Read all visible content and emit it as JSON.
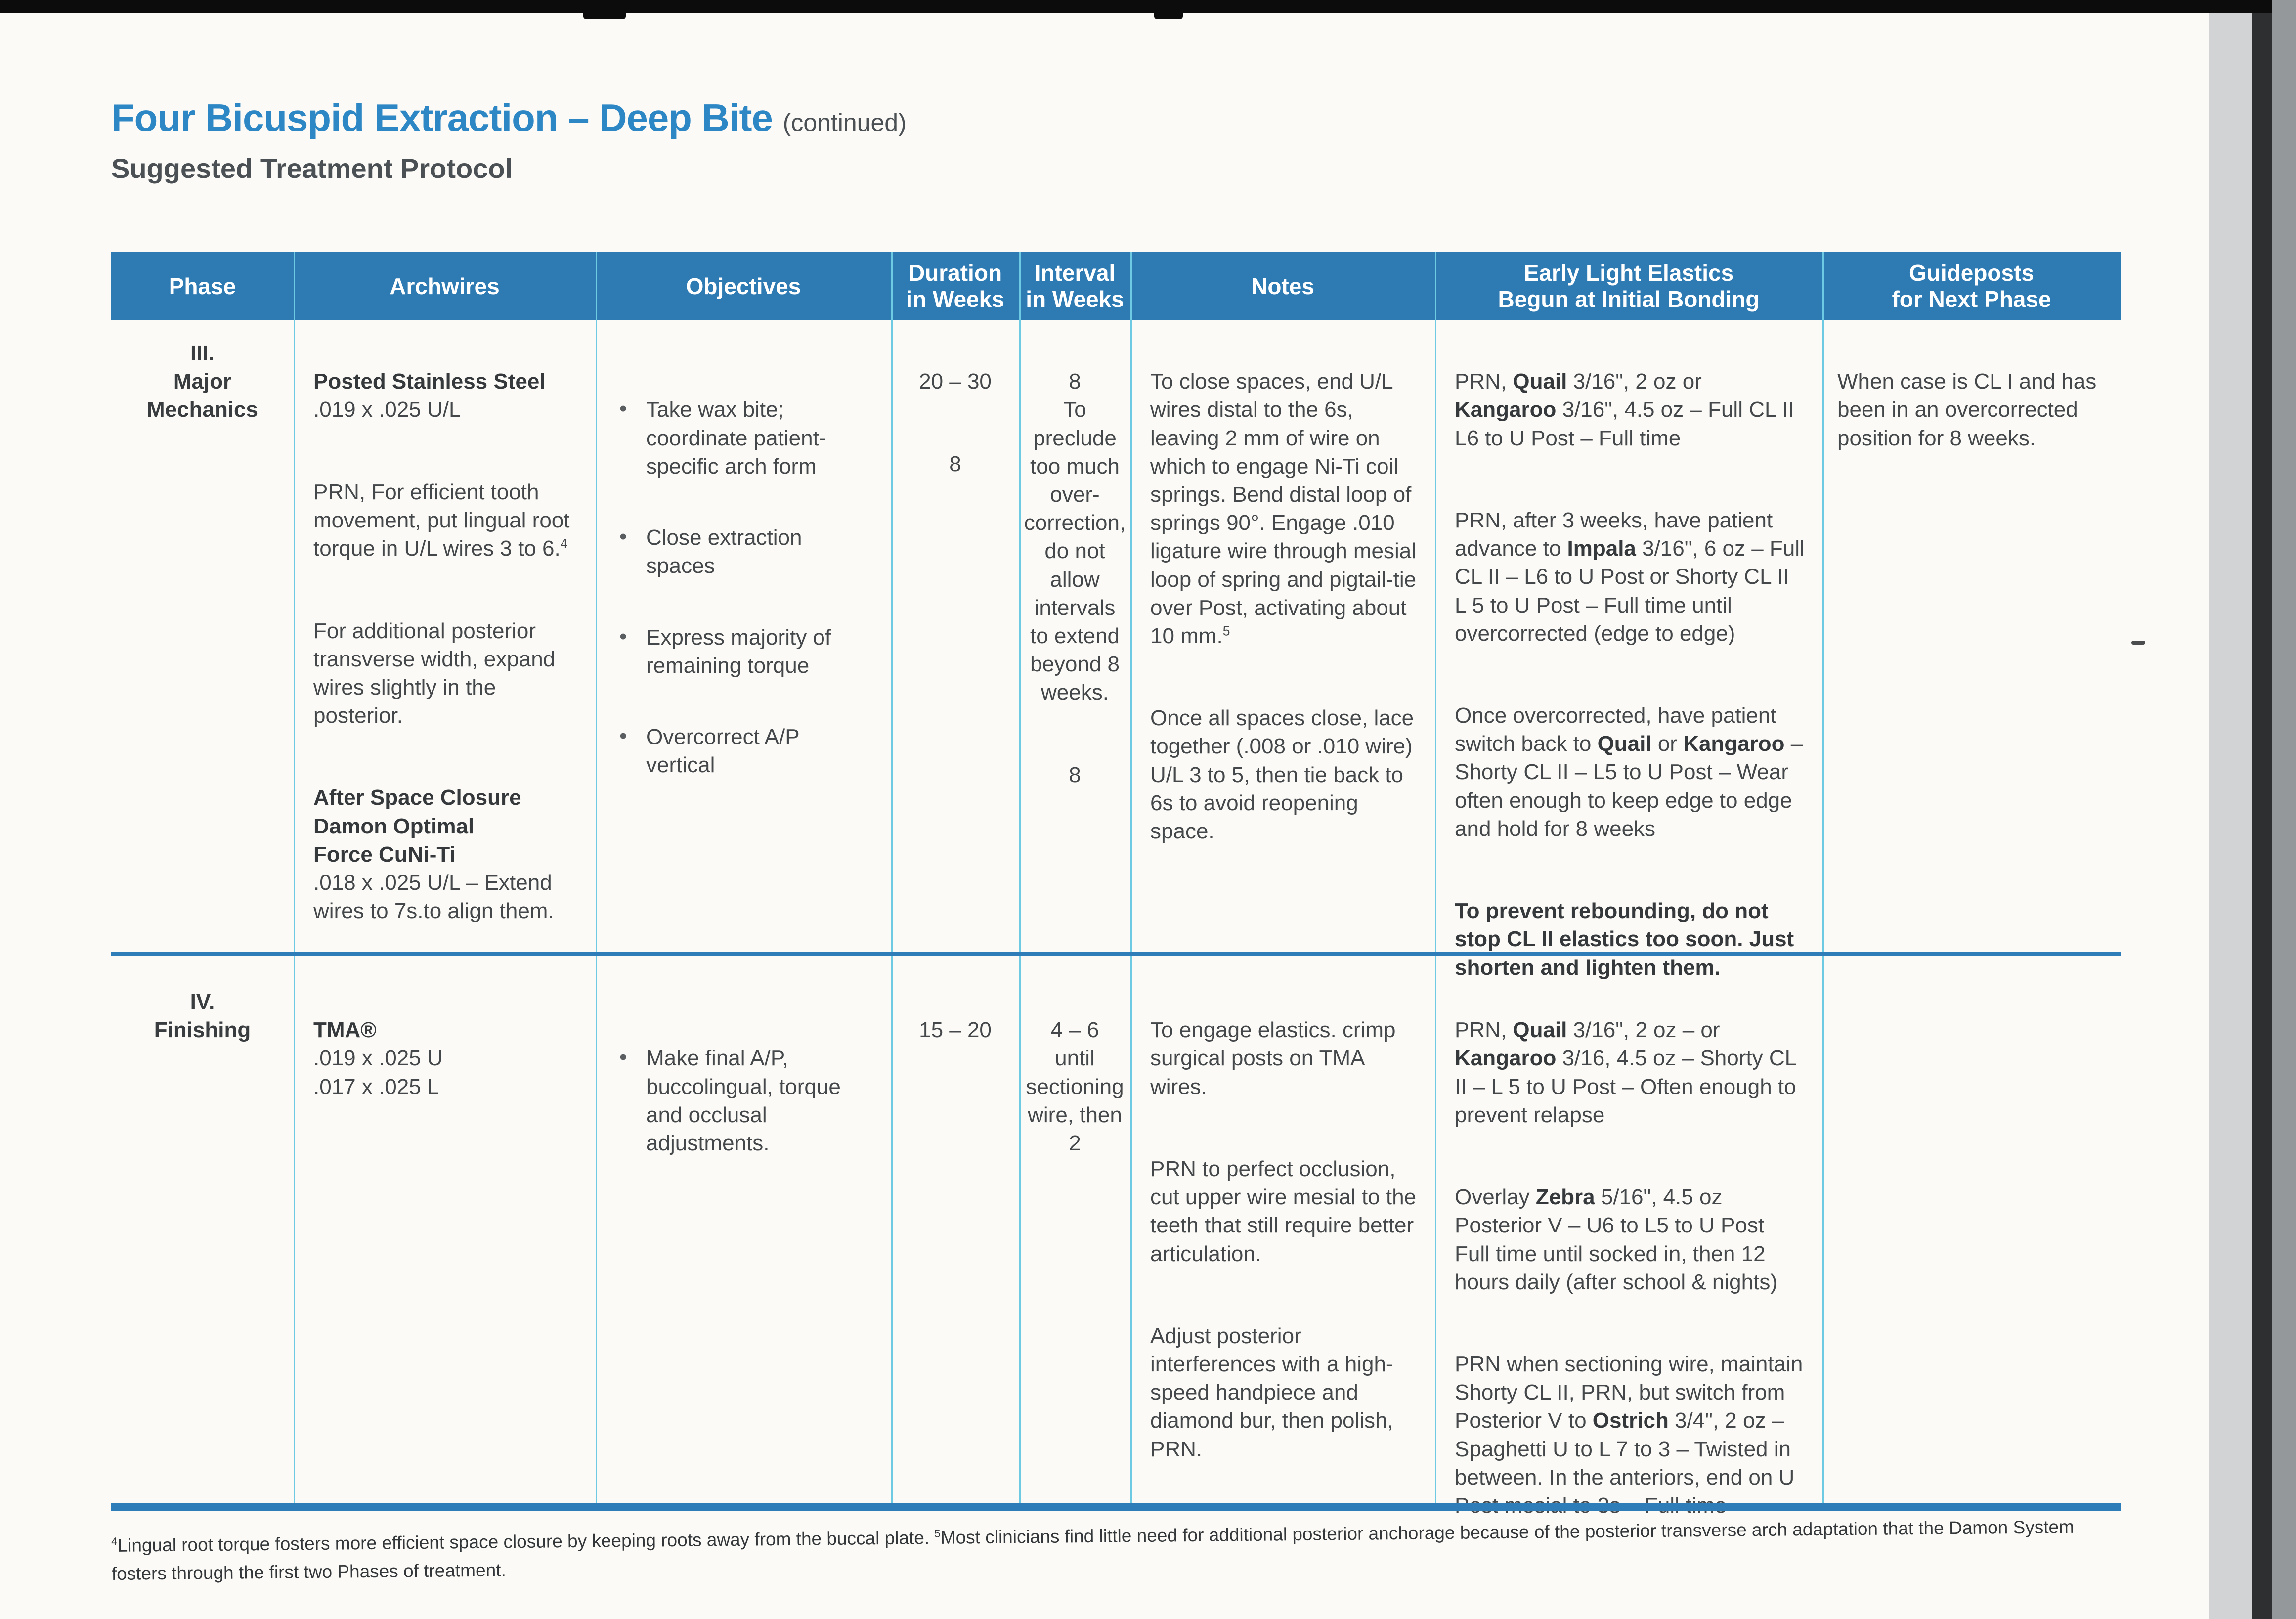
{
  "page": {
    "title": "Four Bicuspid Extraction – Deep Bite",
    "title_note": "(continued)",
    "subtitle": "Suggested Treatment Protocol",
    "accent_header_blue": "#2e7ab3",
    "title_blue": "#2e87c5",
    "rule_cyan": "#6ec9e3"
  },
  "table": {
    "headers": {
      "phase": "Phase",
      "archwires": "Archwires",
      "objectives": "Objectives",
      "duration": "Duration\nin Weeks",
      "interval": "Interval\nin Weeks",
      "notes": "Notes",
      "elastics": "Early Light Elastics\nBegun at Initial Bonding",
      "guideposts": "Guideposts\nfor Next Phase"
    },
    "row3": {
      "phase": "III.\nMajor\nMechanics",
      "archwires1": "**Posted Stainless Steel**\n.019 x .025 U/L",
      "archwires2": "PRN, For efficient tooth movement, put lingual root torque in U/L wires 3 to 6.^4^",
      "archwires3": "For additional posterior transverse width, expand wires slightly in the posterior.",
      "archwires4": "**After Space Closure\nDamon Optimal\nForce CuNi-Ti**\n.018 x .025 U/L – Extend wires to 7s.to align them.",
      "objectives": [
        "Take wax bite; coordinate patient-specific arch form",
        "Close extraction spaces",
        "Express majority of remaining torque",
        "Overcorrect A/P vertical"
      ],
      "duration1": "20 – 30",
      "duration2": "8",
      "interval1": "8\nTo preclude too much over-correction, do not allow intervals to extend beyond 8 weeks.",
      "interval2": "8",
      "notes1": "To close spaces, end U/L wires distal to the 6s, leaving 2 mm of wire on which to engage Ni-Ti coil springs. Bend distal loop of springs 90°. Engage .010 ligature wire through mesial loop of spring and pigtail-tie over Post, activating about 10 mm.^5^",
      "notes2": "Once all spaces close, lace together (.008 or .010 wire) U/L 3 to 5, then tie back to 6s to avoid reopening space.",
      "elastics1": "PRN, **Quail** 3/16\", 2 oz or **Kangaroo** 3/16\", 4.5 oz – Full CL II L6 to U Post – Full time",
      "elastics2": "PRN, after 3 weeks, have patient advance to **Impala** 3/16\", 6 oz – Full CL II – L6 to U Post or Shorty CL II L 5 to U Post – Full time until overcorrected (edge to edge)",
      "elastics3": "Once overcorrected, have patient switch back to **Quail** or **Kangaroo** – Shorty CL II – L5 to U Post – Wear often enough to keep edge to edge and hold for 8 weeks",
      "elastics4": "**To prevent rebounding, do not stop CL II elastics too soon. Just shorten and lighten them.**",
      "guideposts": "When case is CL I and has been in an overcorrected position for 8 weeks."
    },
    "row4": {
      "phase": "IV.\nFinishing",
      "archwires1": "**TMA®**\n.019 x .025 U\n.017 x .025 L",
      "objectives": [
        "Make final A/P, buccolingual, torque and occlusal adjustments."
      ],
      "duration1": "15 – 20",
      "interval1": "4 – 6\nuntil sectioning wire, then 2",
      "notes1": "To engage elastics. crimp surgical posts on TMA wires.",
      "notes2": "PRN to perfect occlusion, cut upper wire mesial to the teeth that still require better articulation.",
      "notes3": "Adjust posterior interferences with a high-speed handpiece and diamond bur, then polish, PRN.",
      "elastics1": "PRN, **Quail** 3/16\", 2 oz – or **Kangaroo** 3/16, 4.5 oz  – Shorty CL II – L 5 to U Post – Often enough to prevent relapse",
      "elastics2": "Overlay **Zebra** 5/16\", 4.5 oz Posterior V – U6 to L5 to U Post Full time until socked in, then 12 hours daily (after school & nights)",
      "elastics3": "PRN when sectioning wire, maintain Shorty CL II, PRN, but switch from Posterior V to **Ostrich** 3/4\", 2 oz – Spaghetti U to L 7 to 3 – Twisted in between. In the anteriors, end on U Post mesial to 3s – Full time",
      "guideposts": ""
    }
  },
  "footnote": "^4^Lingual root torque fosters more efficient space closure by keeping roots away from the buccal plate. ^5^Most clinicians find little need for additional posterior anchorage because of the posterior transverse arch adaptation that the Damon System fosters through the first two Phases of treatment."
}
